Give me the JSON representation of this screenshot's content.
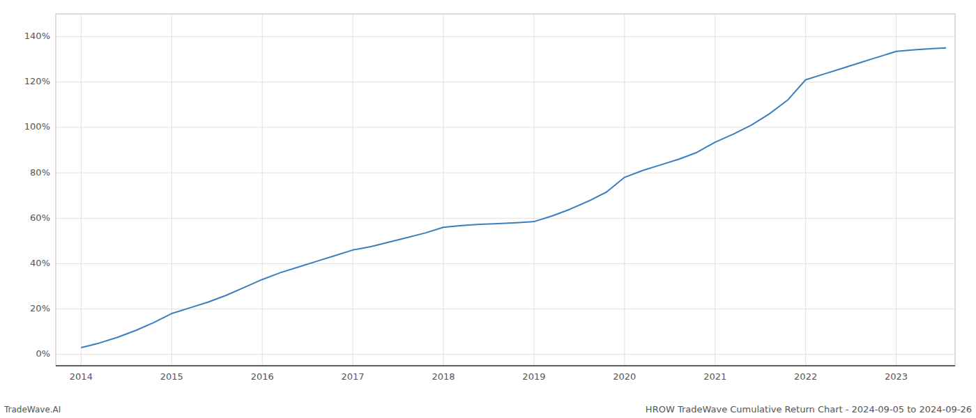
{
  "chart_data": {
    "type": "line",
    "title": "HROW TradeWave Cumulative Return Chart - 2024-09-05 to 2024-09-26",
    "annotations": [
      "TradeWave.AI"
    ],
    "x": [
      2014.0,
      2014.2,
      2014.4,
      2014.6,
      2014.8,
      2015.0,
      2015.2,
      2015.4,
      2015.6,
      2015.8,
      2016.0,
      2016.2,
      2016.4,
      2016.6,
      2016.8,
      2017.0,
      2017.2,
      2017.4,
      2017.6,
      2017.8,
      2018.0,
      2018.2,
      2018.4,
      2018.6,
      2018.8,
      2019.0,
      2019.2,
      2019.4,
      2019.6,
      2019.8,
      2020.0,
      2020.2,
      2020.4,
      2020.6,
      2020.8,
      2021.0,
      2021.2,
      2021.4,
      2021.6,
      2021.8,
      2022.0,
      2022.2,
      2022.4,
      2022.6,
      2022.8,
      2023.0,
      2023.2,
      2023.4,
      2023.55
    ],
    "values": [
      3.0,
      5.0,
      7.5,
      10.5,
      14.0,
      18.0,
      20.5,
      23.0,
      26.0,
      29.5,
      33.0,
      36.0,
      38.5,
      41.0,
      43.5,
      46.0,
      47.5,
      49.5,
      51.5,
      53.5,
      56.0,
      56.8,
      57.3,
      57.6,
      58.0,
      58.5,
      61.0,
      64.0,
      67.5,
      71.5,
      78.0,
      81.0,
      83.5,
      86.0,
      89.0,
      93.5,
      97.0,
      101.0,
      106.0,
      112.0,
      121.0,
      123.5,
      126.0,
      128.5,
      131.0,
      133.5,
      134.2,
      134.7,
      135.0
    ],
    "color": "#3a7ebf",
    "xlim": [
      2013.72,
      2023.65
    ],
    "ylim": [
      -5,
      150
    ],
    "xticks": [
      2014,
      2015,
      2016,
      2017,
      2018,
      2019,
      2020,
      2021,
      2022,
      2023
    ],
    "yticks": [
      {
        "value": 0,
        "label": "0%"
      },
      {
        "value": 20,
        "label": "20%"
      },
      {
        "value": 40,
        "label": "40%"
      },
      {
        "value": 60,
        "label": "60%"
      },
      {
        "value": 80,
        "label": "80%"
      },
      {
        "value": 100,
        "label": "100%"
      },
      {
        "value": 120,
        "label": "120%"
      },
      {
        "value": 140,
        "label": "140%"
      }
    ],
    "grid": true
  }
}
